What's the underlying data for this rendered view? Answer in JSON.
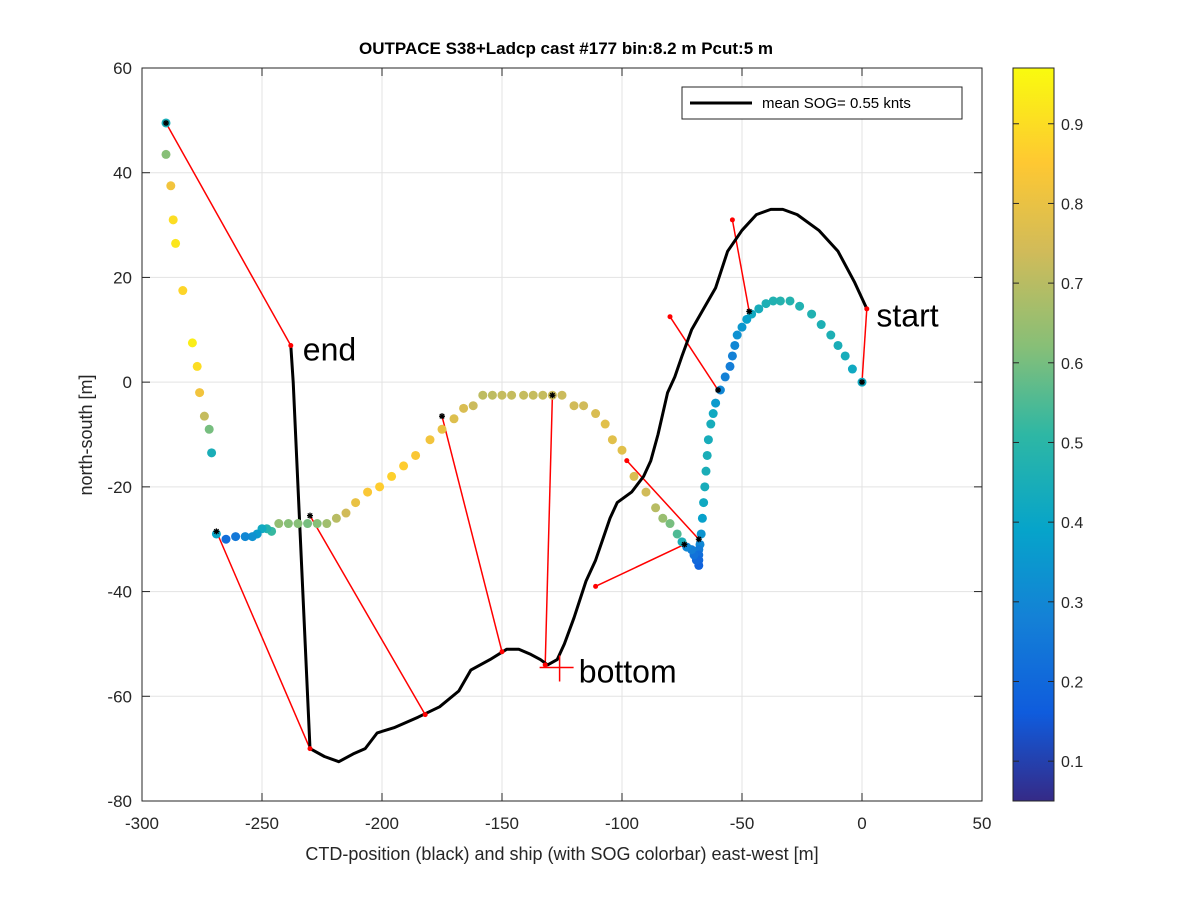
{
  "chart_data": {
    "type": "scatter",
    "title": "OUTPACE S38+Ladcp cast #177 bin:8.2 m  Pcut:5 m",
    "xlabel": "CTD-position (black) and ship (with SOG colorbar) east-west [m]",
    "ylabel": "north-south [m]",
    "xlim": [
      -300,
      50
    ],
    "ylim": [
      -80,
      60
    ],
    "xticks": [
      -300,
      -250,
      -200,
      -150,
      -100,
      -50,
      0,
      50
    ],
    "yticks": [
      -80,
      -60,
      -40,
      -20,
      0,
      20,
      40,
      60
    ],
    "grid": true,
    "legend": {
      "placement": "top-right",
      "entries": [
        {
          "label": "mean SOG=  0.55 knts",
          "color": "#000000"
        }
      ]
    },
    "colorbar": {
      "range": [
        0.05,
        0.97
      ],
      "ticks": [
        0.1,
        0.2,
        0.3,
        0.4,
        0.5,
        0.6,
        0.7,
        0.8,
        0.9
      ],
      "tick_labels": [
        "0.1",
        "0.2",
        "0.3",
        "0.4",
        "0.5",
        "0.6",
        "0.7",
        "0.8",
        "0.9"
      ],
      "colormap": "parula"
    },
    "annotations": [
      {
        "text": "start",
        "x": 1,
        "y": 12.5
      },
      {
        "text": "end",
        "x": -238,
        "y": 6
      },
      {
        "text": "bottom",
        "x": -123,
        "y": -55.5
      }
    ],
    "ctd_track": {
      "name": "CTD-position",
      "color": "#000000",
      "points": [
        [
          2,
          14
        ],
        [
          -3,
          19
        ],
        [
          -10,
          25
        ],
        [
          -18,
          29
        ],
        [
          -27,
          32
        ],
        [
          -33,
          33
        ],
        [
          -38,
          33
        ],
        [
          -44,
          32
        ],
        [
          -50,
          29
        ],
        [
          -56,
          25
        ],
        [
          -61,
          18
        ],
        [
          -66,
          14
        ],
        [
          -71,
          10
        ],
        [
          -75,
          5
        ],
        [
          -78,
          1
        ],
        [
          -81,
          -2
        ],
        [
          -83,
          -6
        ],
        [
          -85,
          -10
        ],
        [
          -88,
          -15
        ],
        [
          -91,
          -18
        ],
        [
          -96,
          -21
        ],
        [
          -102,
          -23
        ],
        [
          -105,
          -26
        ],
        [
          -108,
          -30
        ],
        [
          -111,
          -34
        ],
        [
          -115,
          -38
        ],
        [
          -120,
          -45
        ],
        [
          -124,
          -50
        ],
        [
          -127,
          -53
        ],
        [
          -131,
          -54
        ],
        [
          -134,
          -53
        ],
        [
          -138,
          -52
        ],
        [
          -143,
          -51
        ],
        [
          -148,
          -51
        ],
        [
          -155,
          -53
        ],
        [
          -163,
          -55
        ],
        [
          -168,
          -59
        ],
        [
          -176,
          -62
        ],
        [
          -185,
          -64
        ],
        [
          -195,
          -66
        ],
        [
          -202,
          -67
        ],
        [
          -207,
          -70
        ],
        [
          -212,
          -71
        ],
        [
          -218,
          -72.5
        ],
        [
          -224,
          -71.5
        ],
        [
          -230,
          -70
        ],
        [
          -231,
          -60
        ],
        [
          -232,
          -50
        ],
        [
          -233,
          -40
        ],
        [
          -234,
          -30
        ],
        [
          -235,
          -20
        ],
        [
          -236,
          -10
        ],
        [
          -237,
          0
        ],
        [
          -238,
          7
        ]
      ]
    },
    "ship_track": {
      "name": "ship",
      "points": [
        [
          0,
          0,
          0.42
        ],
        [
          -4,
          2.5,
          0.42
        ],
        [
          -7,
          5,
          0.44
        ],
        [
          -10,
          7,
          0.45
        ],
        [
          -13,
          9,
          0.46
        ],
        [
          -17,
          11,
          0.46
        ],
        [
          -21,
          13,
          0.47
        ],
        [
          -26,
          14.5,
          0.47
        ],
        [
          -30,
          15.5,
          0.48
        ],
        [
          -34,
          15.5,
          0.48
        ],
        [
          -37,
          15.5,
          0.47
        ],
        [
          -40,
          15,
          0.46
        ],
        [
          -43,
          14,
          0.44
        ],
        [
          -46,
          13,
          0.42
        ],
        [
          -48,
          12,
          0.38
        ],
        [
          -50,
          10.5,
          0.35
        ],
        [
          -52,
          9,
          0.33
        ],
        [
          -53,
          7,
          0.3
        ],
        [
          -54,
          5,
          0.28
        ],
        [
          -55,
          3,
          0.27
        ],
        [
          -57,
          1,
          0.28
        ],
        [
          -59,
          -1.5,
          0.3
        ],
        [
          -61,
          -4,
          0.36
        ],
        [
          -62,
          -6,
          0.42
        ],
        [
          -63,
          -8,
          0.44
        ],
        [
          -64,
          -11,
          0.44
        ],
        [
          -64.5,
          -14,
          0.45
        ],
        [
          -65,
          -17,
          0.45
        ],
        [
          -65.5,
          -20,
          0.44
        ],
        [
          -66,
          -23,
          0.42
        ],
        [
          -66.5,
          -26,
          0.38
        ],
        [
          -67,
          -29,
          0.34
        ],
        [
          -67.5,
          -31,
          0.3
        ],
        [
          -68,
          -32,
          0.26
        ],
        [
          -68,
          -33,
          0.22
        ],
        [
          -68,
          -34,
          0.2
        ],
        [
          -68,
          -35,
          0.18
        ],
        [
          -69,
          -34,
          0.2
        ],
        [
          -70,
          -33,
          0.23
        ],
        [
          -71,
          -32,
          0.27
        ],
        [
          -73,
          -31.5,
          0.3
        ],
        [
          -75,
          -30.5,
          0.45
        ],
        [
          -77,
          -29,
          0.55
        ],
        [
          -80,
          -27,
          0.6
        ],
        [
          -83,
          -26,
          0.65
        ],
        [
          -86,
          -24,
          0.7
        ],
        [
          -90,
          -21,
          0.74
        ],
        [
          -95,
          -18,
          0.76
        ],
        [
          -100,
          -13,
          0.78
        ],
        [
          -104,
          -11,
          0.78
        ],
        [
          -107,
          -8,
          0.78
        ],
        [
          -111,
          -6,
          0.76
        ],
        [
          -116,
          -4.5,
          0.74
        ],
        [
          -120,
          -4.5,
          0.74
        ],
        [
          -125,
          -2.5,
          0.73
        ],
        [
          -129,
          -2.5,
          0.73
        ],
        [
          -133,
          -2.5,
          0.72
        ],
        [
          -137,
          -2.5,
          0.72
        ],
        [
          -141,
          -2.5,
          0.72
        ],
        [
          -146,
          -2.5,
          0.72
        ],
        [
          -150,
          -2.5,
          0.72
        ],
        [
          -154,
          -2.5,
          0.71
        ],
        [
          -158,
          -2.5,
          0.71
        ],
        [
          -162,
          -4.5,
          0.73
        ],
        [
          -166,
          -5,
          0.76
        ],
        [
          -170,
          -7,
          0.77
        ],
        [
          -175,
          -9,
          0.8
        ],
        [
          -180,
          -11,
          0.82
        ],
        [
          -186,
          -14,
          0.84
        ],
        [
          -191,
          -16,
          0.86
        ],
        [
          -196,
          -18,
          0.87
        ],
        [
          -201,
          -20,
          0.86
        ],
        [
          -206,
          -21,
          0.84
        ],
        [
          -211,
          -23,
          0.8
        ],
        [
          -215,
          -25,
          0.74
        ],
        [
          -219,
          -26,
          0.7
        ],
        [
          -223,
          -27,
          0.66
        ],
        [
          -227,
          -27,
          0.62
        ],
        [
          -231,
          -27,
          0.6
        ],
        [
          -235,
          -27,
          0.62
        ],
        [
          -239,
          -27,
          0.62
        ],
        [
          -243,
          -27,
          0.64
        ],
        [
          -246,
          -28.5,
          0.52
        ],
        [
          -248,
          -28,
          0.48
        ],
        [
          -250,
          -28,
          0.42
        ],
        [
          -252,
          -29,
          0.36
        ],
        [
          -254,
          -29.5,
          0.33
        ],
        [
          -257,
          -29.5,
          0.3
        ],
        [
          -261,
          -29.5,
          0.25
        ],
        [
          -265,
          -30,
          0.22
        ],
        [
          -269,
          -29,
          0.4
        ],
        [
          -271,
          -13.5,
          0.45
        ],
        [
          -272,
          -9,
          0.6
        ],
        [
          -274,
          -6.5,
          0.72
        ],
        [
          -276,
          -2,
          0.82
        ],
        [
          -277,
          3,
          0.9
        ],
        [
          -279,
          7.5,
          0.94
        ],
        [
          -283,
          17.5,
          0.88
        ],
        [
          -286,
          26.5,
          0.92
        ],
        [
          -287,
          31,
          0.9
        ],
        [
          -288,
          37.5,
          0.82
        ],
        [
          -290,
          43.5,
          0.62
        ],
        [
          -290,
          49.5,
          0.45
        ]
      ]
    },
    "profile_links": {
      "color": "#ff0000",
      "pairs": [
        [
          [
            0,
            0
          ],
          [
            2,
            14
          ]
        ],
        [
          [
            -47,
            13.5
          ],
          [
            -54,
            31
          ]
        ],
        [
          [
            -60,
            -1.5
          ],
          [
            -80,
            12.5
          ]
        ],
        [
          [
            -68,
            -30
          ],
          [
            -98,
            -15
          ]
        ],
        [
          [
            -74,
            -31
          ],
          [
            -111,
            -39
          ]
        ],
        [
          [
            -129,
            -2.5
          ],
          [
            -132,
            -54
          ]
        ],
        [
          [
            -175,
            -6.5
          ],
          [
            -150,
            -51.5
          ]
        ],
        [
          [
            -230,
            -25.5
          ],
          [
            -182,
            -63.5
          ]
        ],
        [
          [
            -269,
            -28.5
          ],
          [
            -230,
            -70
          ]
        ],
        [
          [
            -290,
            49.5
          ],
          [
            -238,
            7
          ]
        ]
      ]
    }
  }
}
